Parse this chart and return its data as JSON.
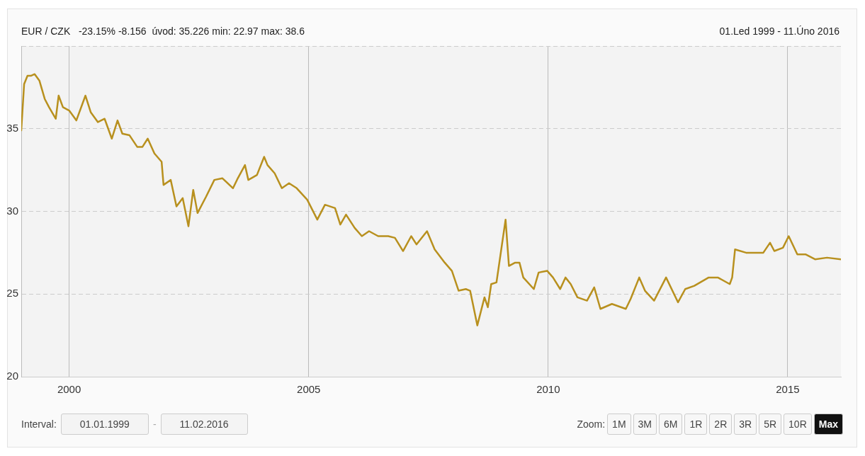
{
  "chart_data": {
    "type": "line",
    "title": "EUR / CZK   -23.15% -8.156  úvod: 35.226 min: 22.97 max: 38.6",
    "subtitle": "01.Led 1999 - 11.Úno 2016",
    "x": [
      1999.0,
      1999.06,
      1999.13,
      1999.2,
      1999.28,
      1999.38,
      1999.49,
      1999.58,
      1999.72,
      1999.78,
      1999.87,
      2000.0,
      2000.15,
      2000.34,
      2000.45,
      2000.6,
      2000.74,
      2000.89,
      2001.01,
      2001.11,
      2001.26,
      2001.42,
      2001.53,
      2001.64,
      2001.78,
      2001.93,
      2001.97,
      2002.12,
      2002.24,
      2002.37,
      2002.49,
      2002.59,
      2002.68,
      2002.86,
      2003.03,
      2003.2,
      2003.42,
      2003.52,
      2003.67,
      2003.74,
      2003.92,
      2004.07,
      2004.14,
      2004.29,
      2004.44,
      2004.59,
      2004.75,
      2004.97,
      2005.18,
      2005.34,
      2005.55,
      2005.66,
      2005.78,
      2005.96,
      2006.11,
      2006.26,
      2006.45,
      2006.66,
      2006.8,
      2006.97,
      2007.14,
      2007.25,
      2007.47,
      2007.63,
      2007.84,
      2007.99,
      2008.13,
      2008.28,
      2008.37,
      2008.52,
      2008.67,
      2008.74,
      2008.81,
      2008.92,
      2009.02,
      2009.11,
      2009.18,
      2009.31,
      2009.4,
      2009.48,
      2009.7,
      2009.8,
      2009.98,
      2010.1,
      2010.25,
      2010.36,
      2010.47,
      2010.61,
      2010.81,
      2010.96,
      2011.09,
      2011.33,
      2011.62,
      2011.72,
      2011.9,
      2012.02,
      2012.21,
      2012.46,
      2012.71,
      2012.86,
      2013.05,
      2013.35,
      2013.54,
      2013.79,
      2013.84,
      2013.9,
      2014.13,
      2014.49,
      2014.63,
      2014.72,
      2014.9,
      2015.02,
      2015.2,
      2015.37,
      2015.57,
      2015.82,
      2016.11
    ],
    "series": [
      {
        "color": "#b8901e",
        "values": [
          34.9,
          37.7,
          38.2,
          38.2,
          38.3,
          37.9,
          36.8,
          36.3,
          35.6,
          37.0,
          36.3,
          36.1,
          35.5,
          37.0,
          36.0,
          35.4,
          35.6,
          34.4,
          35.5,
          34.7,
          34.6,
          33.9,
          33.9,
          34.4,
          33.5,
          33.0,
          31.6,
          31.9,
          30.3,
          30.8,
          29.1,
          31.3,
          29.9,
          30.9,
          31.9,
          32.0,
          31.4,
          32.0,
          32.8,
          31.9,
          32.2,
          33.3,
          32.8,
          32.3,
          31.4,
          31.7,
          31.4,
          30.7,
          29.5,
          30.4,
          30.2,
          29.2,
          29.8,
          29.0,
          28.5,
          28.8,
          28.5,
          28.5,
          28.4,
          27.6,
          28.5,
          28.0,
          28.8,
          27.7,
          26.9,
          26.4,
          25.2,
          25.3,
          25.2,
          23.1,
          24.8,
          24.2,
          25.6,
          25.7,
          27.7,
          29.5,
          26.7,
          26.9,
          26.9,
          26.0,
          25.3,
          26.3,
          26.4,
          26.0,
          25.3,
          26.0,
          25.6,
          24.8,
          24.6,
          25.4,
          24.1,
          24.4,
          24.1,
          24.7,
          26.0,
          25.2,
          24.6,
          26.0,
          24.5,
          25.3,
          25.5,
          26.0,
          26.0,
          25.6,
          26.0,
          27.7,
          27.5,
          27.5,
          28.1,
          27.6,
          27.8,
          28.5,
          27.4,
          27.4,
          27.1,
          27.2,
          27.1
        ]
      }
    ],
    "xlim": [
      1999.0,
      2016.11
    ],
    "xticks": [
      2000,
      2005,
      2010,
      2015
    ],
    "ylim": [
      20,
      40
    ],
    "yticks": [
      20,
      25,
      30,
      35,
      {
        "value": 40,
        "label": null
      }
    ],
    "grid": true,
    "marker": "none",
    "line_style": "solid",
    "annotations": [
      "Interval:",
      "01.01.1999",
      "-",
      "11.02.2016",
      "Zoom:",
      "1M",
      "3M",
      "6M",
      "1R",
      "2R",
      "3R",
      "5R",
      "10R",
      "Max"
    ]
  }
}
